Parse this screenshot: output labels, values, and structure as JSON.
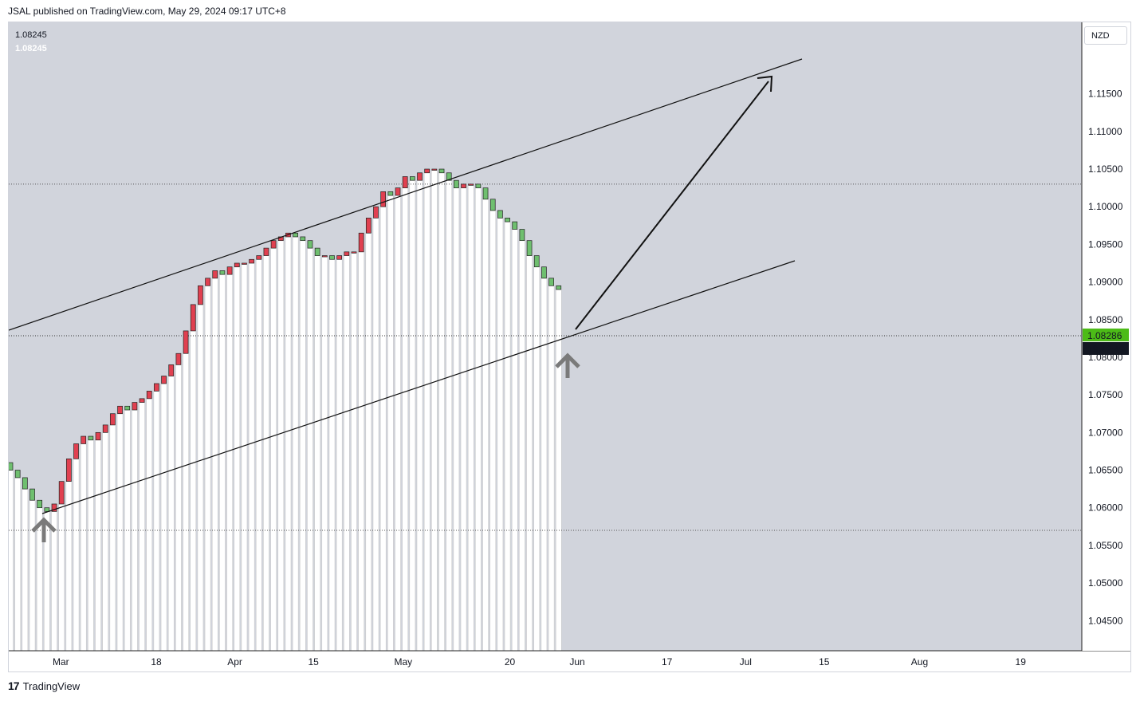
{
  "header": {
    "published": "JSAL published on TradingView.com, May 29, 2024 09:17 UTC+8"
  },
  "legend": {
    "value1": "1.08245",
    "value2": "1.08245"
  },
  "currency_button": "NZD",
  "price_badge": {
    "price": "1.08286",
    "countdown": "19:42:49",
    "color": "#4cbb17"
  },
  "footer": {
    "brand": "TradingView",
    "logo": "tradingview-logo"
  },
  "colors": {
    "bg_gray": "#d1d4dc",
    "up": "#6fbf6f",
    "down": "#e04050"
  },
  "chart_data": {
    "type": "candlestick",
    "y_ticks": [
      "1.11500",
      "1.11000",
      "1.10500",
      "1.10000",
      "1.09500",
      "1.09000",
      "1.08500",
      "1.08000",
      "1.07500",
      "1.07000",
      "1.06500",
      "1.06000",
      "1.05500",
      "1.05000",
      "1.04500"
    ],
    "ylim": [
      1.041,
      1.1245
    ],
    "x_ticks": [
      "Mar",
      "18",
      "Apr",
      "15",
      "May",
      "20",
      "Jun",
      "17",
      "Jul",
      "15",
      "Aug",
      "19"
    ],
    "x_tick_dates": [
      "2024-03-01",
      "2024-03-18",
      "2024-04-01",
      "2024-04-15",
      "2024-05-01",
      "2024-05-20",
      "2024-06-01",
      "2024-06-17",
      "2024-07-01",
      "2024-07-15",
      "2024-08-01",
      "2024-08-19"
    ],
    "closes": [
      1.065,
      1.064,
      1.0625,
      1.061,
      1.06,
      1.0595,
      1.0605,
      1.0635,
      1.0665,
      1.0685,
      1.0695,
      1.069,
      1.07,
      1.071,
      1.0725,
      1.0735,
      1.073,
      1.074,
      1.0745,
      1.0755,
      1.0765,
      1.0775,
      1.079,
      1.0805,
      1.0835,
      1.087,
      1.0895,
      1.0905,
      1.0915,
      1.091,
      1.092,
      1.0925,
      1.0925,
      1.093,
      1.0935,
      1.0945,
      1.0955,
      1.096,
      1.0965,
      1.096,
      1.0955,
      1.0945,
      1.0935,
      1.0935,
      1.093,
      1.0935,
      1.094,
      1.094,
      1.0965,
      1.0985,
      1.1,
      1.102,
      1.1015,
      1.1025,
      1.104,
      1.1035,
      1.1045,
      1.105,
      1.105,
      1.1045,
      1.1035,
      1.1025,
      1.103,
      1.103,
      1.1025,
      1.101,
      1.0995,
      1.0985,
      1.098,
      1.097,
      1.0955,
      1.0935,
      1.092,
      1.0905,
      1.0895,
      1.089
    ],
    "levels": {
      "resistance": 1.103,
      "support": 1.057,
      "current": 1.08286
    },
    "annotations": [
      {
        "type": "trendline",
        "name": "upper-channel-line"
      },
      {
        "type": "trendline",
        "name": "lower-channel-line"
      },
      {
        "type": "arrow",
        "name": "projection-arrow"
      },
      {
        "type": "up-arrow",
        "name": "bounce-marker-left"
      },
      {
        "type": "up-arrow",
        "name": "bounce-marker-right"
      }
    ]
  }
}
